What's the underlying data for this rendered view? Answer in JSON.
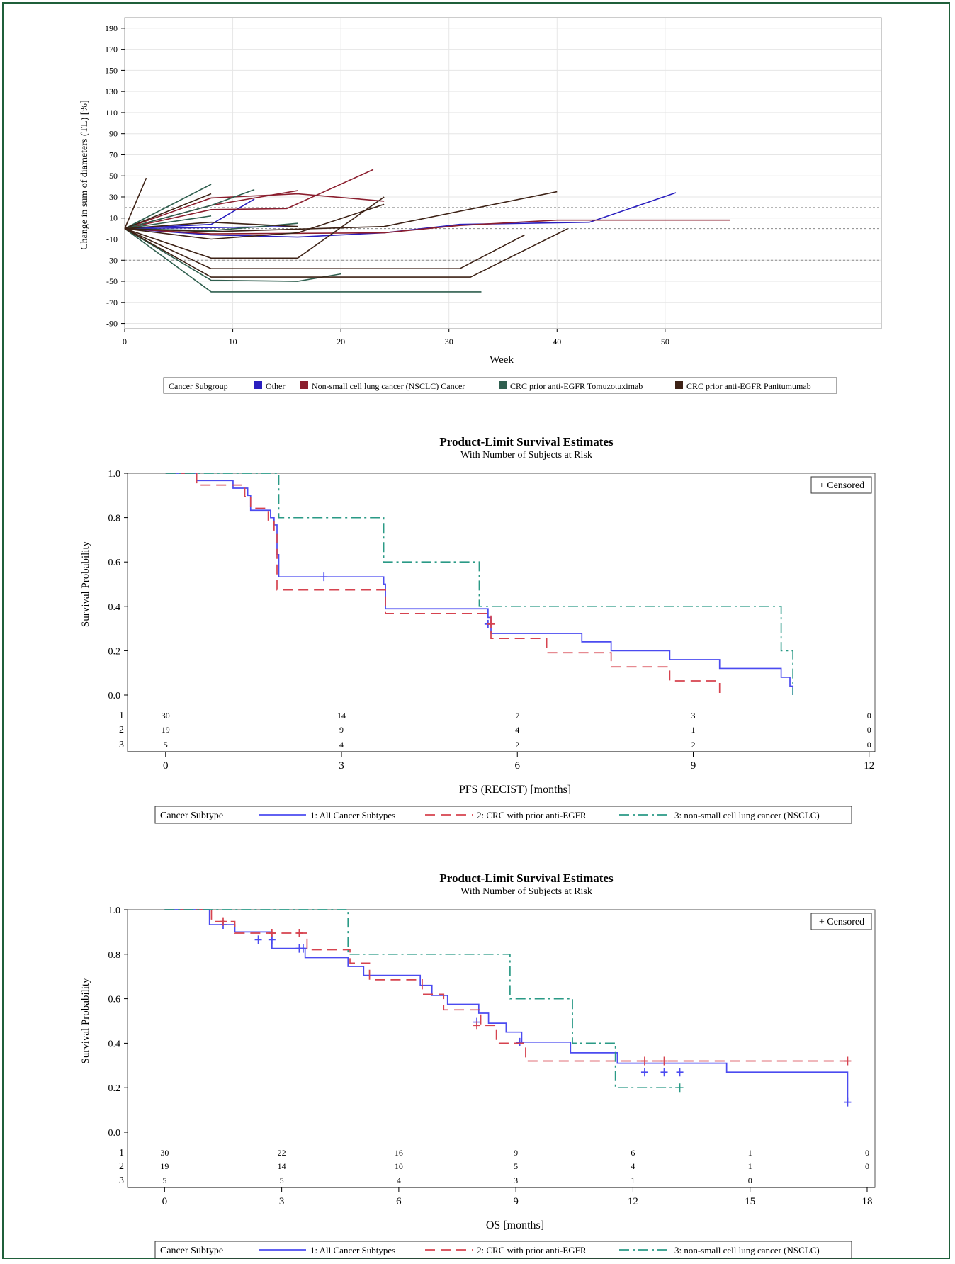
{
  "chart_data": [
    {
      "type": "line",
      "title": "",
      "xlabel": "Week",
      "ylabel": "Change in sum of diameters (TL) [%]",
      "xlim": [
        0,
        70
      ],
      "ylim": [
        -95,
        200
      ],
      "x_ticks": [
        "0",
        "10",
        "20",
        "30",
        "40",
        "50"
      ],
      "y_ticks": [
        "190",
        "170",
        "150",
        "130",
        "110",
        "90",
        "70",
        "50",
        "30",
        "10",
        "-10",
        "-30",
        "-50",
        "-70",
        "-90"
      ],
      "y_tick_values": [
        190,
        170,
        150,
        130,
        110,
        90,
        70,
        50,
        30,
        10,
        -10,
        -30,
        -50,
        -70,
        -90
      ],
      "x_tick_values": [
        0,
        10,
        20,
        30,
        40,
        50
      ],
      "grid": true,
      "reference_lines": [
        20,
        0,
        -30
      ],
      "legend": {
        "title": "Cancer Subgroup",
        "placement": "bottom",
        "entries": [
          {
            "label": "Other",
            "color": "#2a1fbf"
          },
          {
            "label": "Non-small cell lung cancer (NSCLC) Cancer",
            "color": "#8b1e2e"
          },
          {
            "label": "CRC prior anti-EGFR Tomuzotuximab",
            "color": "#2f5f4f"
          },
          {
            "label": "CRC prior anti-EGFR Panitumumab",
            "color": "#3d2216"
          }
        ]
      },
      "series": [
        {
          "group": 0,
          "x": [
            0,
            8,
            12
          ],
          "y": [
            0,
            4,
            28
          ]
        },
        {
          "group": 0,
          "x": [
            0,
            8,
            16,
            24,
            31,
            43,
            51
          ],
          "y": [
            0,
            -6,
            -8,
            -4,
            4,
            6,
            34
          ]
        },
        {
          "group": 0,
          "x": [
            0,
            8,
            16
          ],
          "y": [
            0,
            1,
            2
          ]
        },
        {
          "group": 1,
          "x": [
            0,
            8,
            16,
            24
          ],
          "y": [
            0,
            29,
            33,
            26
          ]
        },
        {
          "group": 1,
          "x": [
            0,
            8,
            15,
            23
          ],
          "y": [
            0,
            18,
            19,
            56
          ]
        },
        {
          "group": 1,
          "x": [
            0,
            8,
            16
          ],
          "y": [
            0,
            22,
            36
          ]
        },
        {
          "group": 1,
          "x": [
            0,
            8,
            24,
            31,
            40,
            56
          ],
          "y": [
            0,
            -5,
            -4,
            3,
            8,
            8
          ]
        },
        {
          "group": 2,
          "x": [
            0,
            8
          ],
          "y": [
            0,
            42
          ]
        },
        {
          "group": 2,
          "x": [
            0,
            8,
            12
          ],
          "y": [
            0,
            22,
            37
          ]
        },
        {
          "group": 2,
          "x": [
            0,
            8
          ],
          "y": [
            0,
            12
          ]
        },
        {
          "group": 2,
          "x": [
            0,
            8,
            16
          ],
          "y": [
            0,
            -2,
            5
          ]
        },
        {
          "group": 2,
          "x": [
            0,
            8,
            16,
            20
          ],
          "y": [
            0,
            -49,
            -50,
            -43
          ]
        },
        {
          "group": 2,
          "x": [
            0,
            8,
            33
          ],
          "y": [
            0,
            -60,
            -60
          ]
        },
        {
          "group": 3,
          "x": [
            0,
            2
          ],
          "y": [
            0,
            48
          ]
        },
        {
          "group": 3,
          "x": [
            0,
            8
          ],
          "y": [
            0,
            33
          ]
        },
        {
          "group": 3,
          "x": [
            0,
            8,
            16
          ],
          "y": [
            0,
            6,
            2
          ]
        },
        {
          "group": 3,
          "x": [
            0,
            8,
            16,
            24
          ],
          "y": [
            0,
            -10,
            -4,
            23
          ]
        },
        {
          "group": 3,
          "x": [
            0,
            8,
            24,
            40
          ],
          "y": [
            0,
            -3,
            2,
            35
          ]
        },
        {
          "group": 3,
          "x": [
            0,
            8,
            16,
            24
          ],
          "y": [
            0,
            -28,
            -28,
            30
          ]
        },
        {
          "group": 3,
          "x": [
            0,
            8,
            31,
            37
          ],
          "y": [
            0,
            -38,
            -38,
            -6
          ]
        },
        {
          "group": 3,
          "x": [
            0,
            8,
            32,
            41
          ],
          "y": [
            0,
            -46,
            -46,
            0
          ]
        }
      ]
    },
    {
      "type": "line",
      "title": "Product-Limit Survival Estimates",
      "subtitle": "With Number of Subjects at Risk",
      "xlabel": "PFS (RECIST) [months]",
      "ylabel": "Survival Probability",
      "xlim": [
        -0.65,
        12.1
      ],
      "ylim": [
        0,
        1.0
      ],
      "x_ticks": [
        "0",
        "3",
        "6",
        "9",
        "12"
      ],
      "x_tick_values": [
        0,
        3,
        6,
        9,
        12
      ],
      "y_ticks": [
        "1.0",
        "0.8",
        "0.6",
        "0.4",
        "0.2",
        "0.0"
      ],
      "y_tick_values": [
        1.0,
        0.8,
        0.6,
        0.4,
        0.2,
        0.0
      ],
      "inset_legend": "+ Censored",
      "legend": {
        "title": "Cancer Subtype",
        "placement": "bottom",
        "entries": [
          {
            "label": "1: All Cancer Subtypes",
            "color": "#4b4bf0",
            "dash": ""
          },
          {
            "label": "2: CRC with prior anti-EGFR",
            "color": "#d6434f",
            "dash": "14,8"
          },
          {
            "label": "3: non-small cell lung cancer (NSCLC)",
            "color": "#2a9a86",
            "dash": "14,5,3,5"
          }
        ]
      },
      "series": [
        {
          "name": "1: All Cancer Subtypes",
          "color": "#4b4bf0",
          "dash": "",
          "x": [
            0,
            0.53,
            1.15,
            1.4,
            1.45,
            1.79,
            1.85,
            1.9,
            1.93,
            2.73,
            3.72,
            3.75,
            5.4,
            5.5,
            5.55,
            6.5,
            7.1,
            7.6,
            8.6,
            9.45,
            10.5,
            10.65,
            10.7
          ],
          "y": [
            1.0,
            0.967,
            0.933,
            0.9,
            0.833,
            0.8,
            0.767,
            0.633,
            0.533,
            0.533,
            0.5,
            0.389,
            0.389,
            0.35,
            0.278,
            0.278,
            0.24,
            0.2,
            0.16,
            0.12,
            0.08,
            0.04,
            0.0
          ],
          "end_x": 10.7,
          "censored": [
            [
              2.7,
              0.533
            ],
            [
              5.5,
              0.32
            ]
          ]
        },
        {
          "name": "2: CRC with prior anti-EGFR",
          "color": "#d6434f",
          "dash": "14,8",
          "x": [
            0,
            0.53,
            1.35,
            1.45,
            1.75,
            1.85,
            1.9,
            3.72,
            3.75,
            5.4,
            5.55,
            6.5,
            7.6,
            8.6,
            9.45
          ],
          "y": [
            1.0,
            0.947,
            0.895,
            0.842,
            0.789,
            0.737,
            0.474,
            0.474,
            0.368,
            0.368,
            0.255,
            0.191,
            0.127,
            0.064,
            0.0
          ],
          "end_x": 9.45,
          "censored": [
            [
              5.55,
              0.32
            ]
          ]
        },
        {
          "name": "3: non-small cell lung cancer (NSCLC)",
          "color": "#2a9a86",
          "dash": "14,5,3,5",
          "x": [
            0,
            1.93,
            3.72,
            5.35,
            10.5,
            10.7
          ],
          "y": [
            1.0,
            0.8,
            0.6,
            0.4,
            0.2,
            0.0
          ],
          "end_x": 10.7,
          "censored": []
        }
      ],
      "at_risk": {
        "rows": [
          {
            "label": "1",
            "values": [
              "30",
              "14",
              "7",
              "3",
              "0"
            ]
          },
          {
            "label": "2",
            "values": [
              "19",
              "9",
              "4",
              "1",
              "0"
            ]
          },
          {
            "label": "3",
            "values": [
              "5",
              "4",
              "2",
              "2",
              "0"
            ]
          }
        ]
      }
    },
    {
      "type": "line",
      "title": "Product-Limit Survival Estimates",
      "subtitle": "With Number of Subjects at Risk",
      "xlabel": "OS [months]",
      "ylabel": "Survival Probability",
      "xlim": [
        -0.95,
        18.2
      ],
      "ylim": [
        0,
        1.0
      ],
      "x_ticks": [
        "0",
        "3",
        "6",
        "9",
        "12",
        "15",
        "18"
      ],
      "x_tick_values": [
        0,
        3,
        6,
        9,
        12,
        15,
        18
      ],
      "y_ticks": [
        "1.0",
        "0.8",
        "0.6",
        "0.4",
        "0.2",
        "0.0"
      ],
      "y_tick_values": [
        1.0,
        0.8,
        0.6,
        0.4,
        0.2,
        0.0
      ],
      "inset_legend": "+ Censored",
      "legend": {
        "title": "Cancer Subtype",
        "placement": "bottom",
        "entries": [
          {
            "label": "1: All Cancer Subtypes",
            "color": "#4b4bf0",
            "dash": ""
          },
          {
            "label": "2: CRC with prior anti-EGFR",
            "color": "#d6434f",
            "dash": "14,8"
          },
          {
            "label": "3: non-small cell lung cancer (NSCLC)",
            "color": "#2a9a86",
            "dash": "14,5,3,5"
          }
        ]
      },
      "series": [
        {
          "name": "1: All Cancer Subtypes",
          "color": "#4b4bf0",
          "dash": "",
          "x": [
            0,
            1.15,
            1.8,
            2.75,
            3.6,
            4.7,
            5.1,
            6.55,
            6.85,
            7.25,
            8.05,
            8.3,
            8.75,
            9.15,
            10.4,
            11.6,
            14.4,
            17.5
          ],
          "y": [
            1.0,
            0.933,
            0.9,
            0.826,
            0.785,
            0.745,
            0.705,
            0.66,
            0.615,
            0.575,
            0.535,
            0.49,
            0.45,
            0.405,
            0.357,
            0.31,
            0.27,
            0.135
          ],
          "end_x": 17.5,
          "censored": [
            [
              1.5,
              0.933
            ],
            [
              2.4,
              0.865
            ],
            [
              2.75,
              0.865
            ],
            [
              3.45,
              0.826
            ],
            [
              3.55,
              0.826
            ],
            [
              8.0,
              0.495
            ],
            [
              9.1,
              0.405
            ],
            [
              12.3,
              0.27
            ],
            [
              12.8,
              0.27
            ],
            [
              13.2,
              0.27
            ],
            [
              17.5,
              0.135
            ]
          ]
        },
        {
          "name": "2: CRC with prior anti-EGFR",
          "color": "#d6434f",
          "dash": "14,8",
          "x": [
            0,
            1.2,
            1.8,
            3.65,
            4.75,
            5.25,
            6.6,
            7.15,
            8.1,
            8.5,
            9.25,
            17.5
          ],
          "y": [
            1.0,
            0.947,
            0.895,
            0.82,
            0.76,
            0.685,
            0.62,
            0.55,
            0.48,
            0.4,
            0.32,
            0.32
          ],
          "end_x": 17.5,
          "censored": [
            [
              1.5,
              0.947
            ],
            [
              2.75,
              0.895
            ],
            [
              3.45,
              0.895
            ],
            [
              8.0,
              0.48
            ],
            [
              12.3,
              0.32
            ],
            [
              12.8,
              0.32
            ],
            [
              17.5,
              0.32
            ]
          ]
        },
        {
          "name": "3: non-small cell lung cancer (NSCLC)",
          "color": "#2a9a86",
          "dash": "14,5,3,5",
          "x": [
            0,
            4.7,
            8.85,
            10.45,
            11.55
          ],
          "y": [
            1.0,
            0.8,
            0.6,
            0.4,
            0.2
          ],
          "end_x": 13.2,
          "censored": [
            [
              13.2,
              0.2
            ]
          ]
        }
      ],
      "at_risk": {
        "rows": [
          {
            "label": "1",
            "values": [
              "30",
              "22",
              "16",
              "9",
              "6",
              "1",
              "0"
            ]
          },
          {
            "label": "2",
            "values": [
              "19",
              "14",
              "10",
              "5",
              "4",
              "1",
              "0"
            ]
          },
          {
            "label": "3",
            "values": [
              "5",
              "5",
              "4",
              "3",
              "1",
              "0",
              ""
            ]
          }
        ]
      }
    }
  ]
}
